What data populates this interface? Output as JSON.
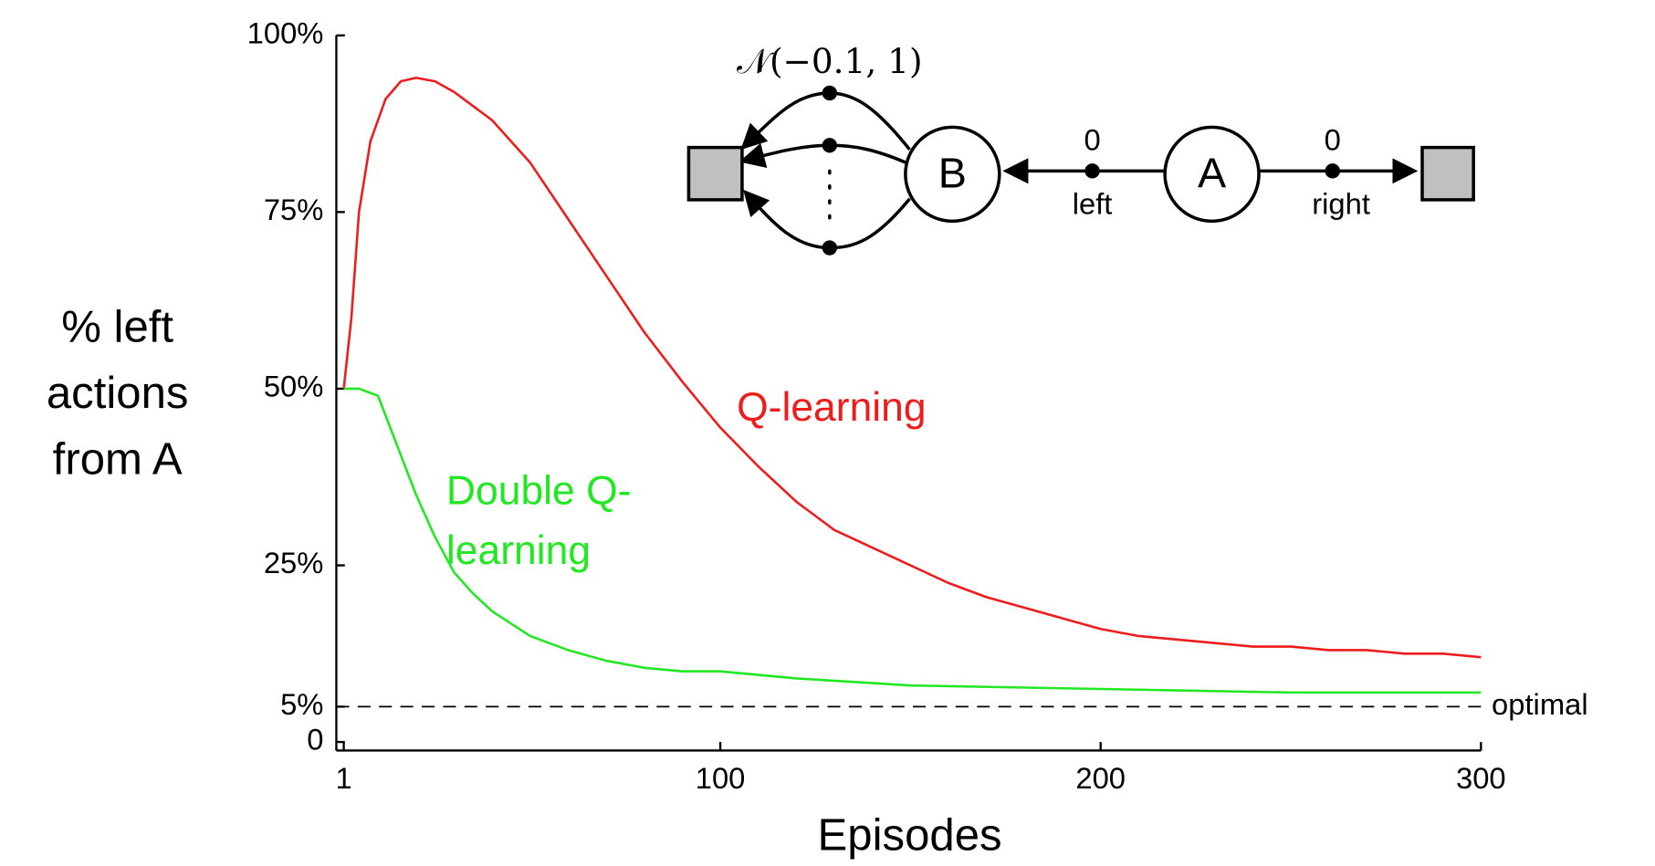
{
  "chart_data": {
    "type": "line",
    "y_label": "% left actions from A",
    "x_label": "Episodes",
    "xlim": [
      0,
      300
    ],
    "ylim": [
      -1,
      100
    ],
    "xticks": [
      1,
      100,
      200,
      300
    ],
    "yticks": [
      0,
      {
        "value": 5,
        "label": "5%"
      },
      {
        "value": 25,
        "label": "25%"
      },
      {
        "value": 50,
        "label": "50%"
      },
      {
        "value": 75,
        "label": "75%"
      },
      {
        "value": 100,
        "label": "100%"
      }
    ],
    "reference_line": {
      "value": 5,
      "label": "optimal"
    },
    "series": [
      {
        "name": "Q-learning",
        "color": "#ee1c1c",
        "x": [
          1,
          3,
          5,
          8,
          12,
          16,
          20,
          25,
          30,
          40,
          50,
          60,
          70,
          80,
          90,
          100,
          110,
          120,
          130,
          140,
          150,
          160,
          170,
          180,
          190,
          200,
          210,
          220,
          230,
          240,
          250,
          260,
          270,
          280,
          290,
          300
        ],
        "values": [
          50,
          60,
          75,
          85,
          91,
          93.5,
          94,
          93.5,
          92,
          88,
          82,
          74,
          66,
          58,
          51,
          44.5,
          39,
          34,
          30,
          27.5,
          25,
          22.5,
          20.5,
          19,
          17.5,
          16,
          15,
          14.5,
          14,
          13.5,
          13.5,
          13,
          13,
          12.5,
          12.5,
          12
        ]
      },
      {
        "name": "Double Q-learning",
        "color": "#22e822",
        "x": [
          1,
          5,
          10,
          15,
          20,
          25,
          30,
          35,
          40,
          50,
          60,
          70,
          80,
          90,
          100,
          120,
          150,
          200,
          250,
          300
        ],
        "values": [
          50,
          50,
          49,
          42,
          35,
          29,
          24,
          21,
          18.5,
          15,
          13,
          11.5,
          10.5,
          10,
          10,
          9,
          8,
          7.5,
          7,
          7
        ]
      }
    ]
  },
  "diagram": {
    "nodes": [
      "B",
      "A"
    ],
    "distribution": "𝒩(−0.1, 1)",
    "edges": [
      {
        "reward": 0,
        "label": "left"
      },
      {
        "reward": 0,
        "label": "right"
      }
    ]
  }
}
